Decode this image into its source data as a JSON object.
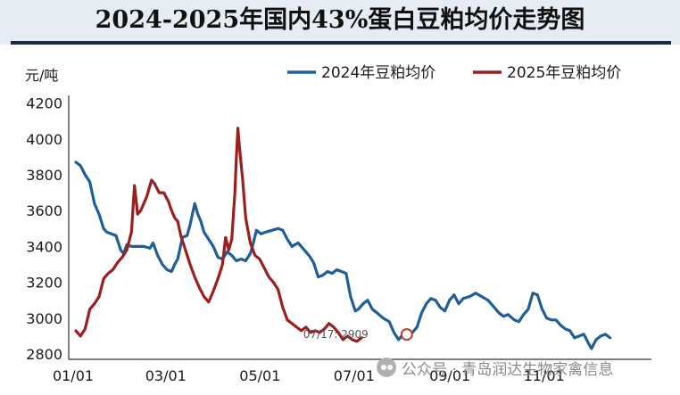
{
  "title": "2024-2025年国内43%蛋白豆粕均价走势图",
  "watermark": "公众号 · 青岛润达生物家禽信息",
  "chart_data": {
    "type": "line",
    "title": "2024-2025年国内43%蛋白豆粕均价走势图",
    "ylabel": "元/吨",
    "xlabel": "",
    "ylim": [
      2800,
      4200
    ],
    "y_ticks": [
      2800,
      3000,
      3200,
      3400,
      3600,
      3800,
      4000,
      4200
    ],
    "x_ticks": [
      {
        "label": "01/01",
        "day": 0
      },
      {
        "label": "03/01",
        "day": 60
      },
      {
        "label": "05/01",
        "day": 121
      },
      {
        "label": "07/01",
        "day": 182
      },
      {
        "label": "09/01",
        "day": 244
      },
      {
        "label": "11/01",
        "day": 305
      }
    ],
    "grid": false,
    "legend_position": "top",
    "series": [
      {
        "name": "2024年豆粕均价",
        "color": "#1f5f99",
        "points": [
          [
            0,
            3870
          ],
          [
            3,
            3850
          ],
          [
            6,
            3800
          ],
          [
            9,
            3760
          ],
          [
            12,
            3640
          ],
          [
            15,
            3580
          ],
          [
            18,
            3500
          ],
          [
            20,
            3480
          ],
          [
            23,
            3470
          ],
          [
            26,
            3460
          ],
          [
            29,
            3380
          ],
          [
            31,
            3360
          ],
          [
            33,
            3410
          ],
          [
            36,
            3400
          ],
          [
            40,
            3400
          ],
          [
            44,
            3400
          ],
          [
            48,
            3390
          ],
          [
            50,
            3420
          ],
          [
            53,
            3350
          ],
          [
            56,
            3300
          ],
          [
            59,
            3270
          ],
          [
            62,
            3260
          ],
          [
            64,
            3300
          ],
          [
            66,
            3330
          ],
          [
            69,
            3450
          ],
          [
            72,
            3460
          ],
          [
            74,
            3520
          ],
          [
            76,
            3600
          ],
          [
            77,
            3640
          ],
          [
            79,
            3580
          ],
          [
            81,
            3540
          ],
          [
            83,
            3480
          ],
          [
            86,
            3440
          ],
          [
            89,
            3400
          ],
          [
            92,
            3340
          ],
          [
            95,
            3330
          ],
          [
            98,
            3370
          ],
          [
            101,
            3350
          ],
          [
            104,
            3320
          ],
          [
            107,
            3330
          ],
          [
            110,
            3320
          ],
          [
            113,
            3360
          ],
          [
            115,
            3420
          ],
          [
            117,
            3490
          ],
          [
            120,
            3470
          ],
          [
            123,
            3480
          ],
          [
            127,
            3490
          ],
          [
            131,
            3500
          ],
          [
            134,
            3490
          ],
          [
            137,
            3440
          ],
          [
            140,
            3400
          ],
          [
            144,
            3420
          ],
          [
            148,
            3380
          ],
          [
            151,
            3350
          ],
          [
            154,
            3310
          ],
          [
            157,
            3230
          ],
          [
            160,
            3240
          ],
          [
            163,
            3260
          ],
          [
            166,
            3250
          ],
          [
            169,
            3270
          ],
          [
            172,
            3260
          ],
          [
            175,
            3250
          ],
          [
            178,
            3120
          ],
          [
            181,
            3040
          ],
          [
            183,
            3050
          ],
          [
            186,
            3080
          ],
          [
            189,
            3100
          ],
          [
            192,
            3050
          ],
          [
            195,
            3030
          ],
          [
            199,
            3000
          ],
          [
            203,
            2980
          ],
          [
            206,
            2920
          ],
          [
            209,
            2880
          ],
          [
            212,
            2910
          ],
          [
            215,
            2900
          ],
          [
            218,
            2920
          ],
          [
            221,
            2950
          ],
          [
            224,
            3030
          ],
          [
            227,
            3080
          ],
          [
            230,
            3110
          ],
          [
            233,
            3100
          ],
          [
            236,
            3060
          ],
          [
            239,
            3040
          ],
          [
            242,
            3100
          ],
          [
            245,
            3130
          ],
          [
            248,
            3080
          ],
          [
            251,
            3110
          ],
          [
            255,
            3120
          ],
          [
            259,
            3140
          ],
          [
            263,
            3120
          ],
          [
            267,
            3100
          ],
          [
            271,
            3060
          ],
          [
            274,
            3030
          ],
          [
            277,
            3010
          ],
          [
            280,
            3020
          ],
          [
            284,
            2990
          ],
          [
            287,
            2980
          ],
          [
            290,
            3020
          ],
          [
            293,
            3050
          ],
          [
            296,
            3140
          ],
          [
            299,
            3130
          ],
          [
            302,
            3050
          ],
          [
            305,
            3000
          ],
          [
            308,
            2990
          ],
          [
            311,
            2990
          ],
          [
            314,
            2960
          ],
          [
            317,
            2940
          ],
          [
            320,
            2930
          ],
          [
            323,
            2890
          ],
          [
            326,
            2900
          ],
          [
            329,
            2910
          ],
          [
            332,
            2860
          ],
          [
            334,
            2830
          ],
          [
            337,
            2880
          ],
          [
            340,
            2900
          ],
          [
            343,
            2910
          ],
          [
            346,
            2890
          ]
        ]
      },
      {
        "name": "2025年豆粕均价",
        "color": "#9c1f1f",
        "points": [
          [
            0,
            2930
          ],
          [
            3,
            2900
          ],
          [
            6,
            2940
          ],
          [
            9,
            3050
          ],
          [
            12,
            3080
          ],
          [
            15,
            3120
          ],
          [
            18,
            3220
          ],
          [
            21,
            3250
          ],
          [
            24,
            3270
          ],
          [
            27,
            3310
          ],
          [
            30,
            3340
          ],
          [
            33,
            3380
          ],
          [
            36,
            3480
          ],
          [
            38,
            3740
          ],
          [
            40,
            3580
          ],
          [
            42,
            3600
          ],
          [
            44,
            3640
          ],
          [
            46,
            3680
          ],
          [
            49,
            3770
          ],
          [
            51,
            3750
          ],
          [
            54,
            3700
          ],
          [
            57,
            3700
          ],
          [
            60,
            3650
          ],
          [
            62,
            3600
          ],
          [
            64,
            3560
          ],
          [
            66,
            3540
          ],
          [
            68,
            3460
          ],
          [
            71,
            3380
          ],
          [
            74,
            3300
          ],
          [
            77,
            3230
          ],
          [
            80,
            3170
          ],
          [
            83,
            3120
          ],
          [
            86,
            3090
          ],
          [
            89,
            3150
          ],
          [
            92,
            3220
          ],
          [
            95,
            3300
          ],
          [
            97,
            3450
          ],
          [
            99,
            3380
          ],
          [
            101,
            3440
          ],
          [
            103,
            3700
          ],
          [
            104,
            3900
          ],
          [
            105,
            4060
          ],
          [
            106,
            3950
          ],
          [
            108,
            3780
          ],
          [
            110,
            3560
          ],
          [
            113,
            3420
          ],
          [
            116,
            3350
          ],
          [
            119,
            3330
          ],
          [
            122,
            3280
          ],
          [
            125,
            3230
          ],
          [
            128,
            3200
          ],
          [
            131,
            3160
          ],
          [
            134,
            3060
          ],
          [
            137,
            2990
          ],
          [
            140,
            2970
          ],
          [
            143,
            2950
          ],
          [
            146,
            2930
          ],
          [
            149,
            2950
          ],
          [
            152,
            2920
          ],
          [
            155,
            2930
          ],
          [
            158,
            2920
          ],
          [
            161,
            2940
          ],
          [
            164,
            2970
          ],
          [
            167,
            2950
          ],
          [
            170,
            2920
          ],
          [
            173,
            2880
          ],
          [
            176,
            2900
          ],
          [
            179,
            2880
          ],
          [
            182,
            2870
          ],
          [
            185,
            2890
          ]
        ]
      }
    ],
    "annotation": {
      "label": "07/17: 2909",
      "day": 197,
      "value": 2909,
      "series": "2025年豆粕均价"
    }
  }
}
